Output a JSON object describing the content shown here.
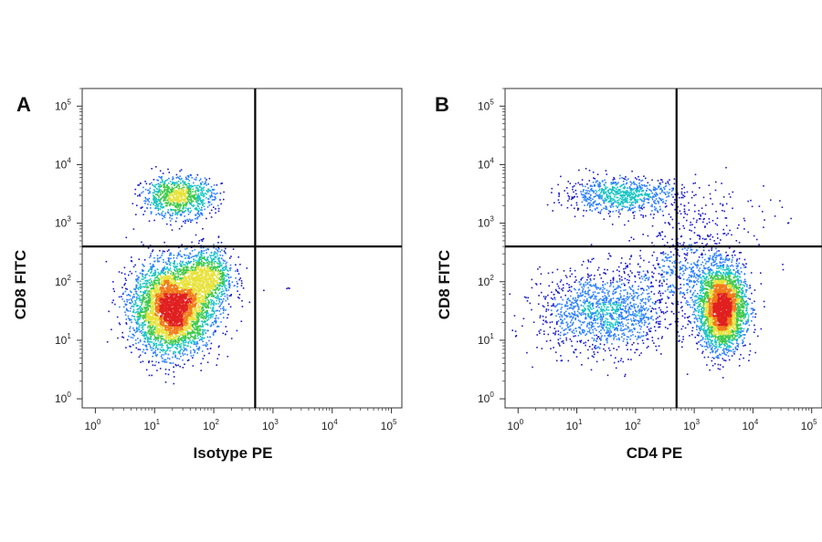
{
  "chart_data": [
    {
      "type": "scatter",
      "panel_label": "A",
      "xlabel": "Isotype PE",
      "ylabel": "CD8 FITC",
      "x_scale": "log",
      "y_scale": "log",
      "xlim": [
        0.6,
        150000
      ],
      "ylim": [
        0.7,
        200000
      ],
      "x_ticks": [
        {
          "base": "10",
          "exp": "0",
          "value": 1
        },
        {
          "base": "10",
          "exp": "1",
          "value": 10
        },
        {
          "base": "10",
          "exp": "2",
          "value": 100
        },
        {
          "base": "10",
          "exp": "3",
          "value": 1000
        },
        {
          "base": "10",
          "exp": "4",
          "value": 10000
        },
        {
          "base": "10",
          "exp": "5",
          "value": 100000
        }
      ],
      "y_ticks": [
        {
          "base": "10",
          "exp": "0",
          "value": 1
        },
        {
          "base": "10",
          "exp": "1",
          "value": 10
        },
        {
          "base": "10",
          "exp": "2",
          "value": 100
        },
        {
          "base": "10",
          "exp": "3",
          "value": 1000
        },
        {
          "base": "10",
          "exp": "4",
          "value": 10000
        },
        {
          "base": "10",
          "exp": "5",
          "value": 100000
        }
      ],
      "quadrant_gate": {
        "x": 500,
        "y": 400
      },
      "colormap": [
        "#1a1acc",
        "#2a7fff",
        "#19c4c4",
        "#3fc94a",
        "#e8e23a",
        "#f07a1a",
        "#e02020"
      ],
      "populations": [
        {
          "center_x": 20,
          "center_y": 35,
          "sd_log_x": 0.33,
          "sd_log_y": 0.38,
          "count": 4200
        },
        {
          "center_x": 80,
          "center_y": 120,
          "sd_log_x": 0.22,
          "sd_log_y": 0.25,
          "count": 900
        },
        {
          "center_x": 25,
          "center_y": 2800,
          "sd_log_x": 0.3,
          "sd_log_y": 0.17,
          "count": 950
        },
        {
          "center_x": 1800,
          "center_y": 80,
          "sd_log_x": 0.02,
          "sd_log_y": 0.02,
          "count": 3
        }
      ]
    },
    {
      "type": "scatter",
      "panel_label": "B",
      "xlabel": "CD4 PE",
      "ylabel": "CD8 FITC",
      "x_scale": "log",
      "y_scale": "log",
      "xlim": [
        0.6,
        150000
      ],
      "ylim": [
        0.7,
        200000
      ],
      "x_ticks": [
        {
          "base": "10",
          "exp": "0",
          "value": 1
        },
        {
          "base": "10",
          "exp": "1",
          "value": 10
        },
        {
          "base": "10",
          "exp": "2",
          "value": 100
        },
        {
          "base": "10",
          "exp": "3",
          "value": 1000
        },
        {
          "base": "10",
          "exp": "4",
          "value": 10000
        },
        {
          "base": "10",
          "exp": "5",
          "value": 100000
        }
      ],
      "y_ticks": [
        {
          "base": "10",
          "exp": "0",
          "value": 1
        },
        {
          "base": "10",
          "exp": "1",
          "value": 10
        },
        {
          "base": "10",
          "exp": "2",
          "value": 100
        },
        {
          "base": "10",
          "exp": "3",
          "value": 1000
        },
        {
          "base": "10",
          "exp": "4",
          "value": 10000
        },
        {
          "base": "10",
          "exp": "5",
          "value": 100000
        }
      ],
      "quadrant_gate": {
        "x": 500,
        "y": 400
      },
      "colormap": [
        "#1a1acc",
        "#2a7fff",
        "#19c4c4",
        "#3fc94a",
        "#e8e23a",
        "#f07a1a",
        "#e02020"
      ],
      "populations": [
        {
          "center_x": 3000,
          "center_y": 35,
          "sd_log_x": 0.2,
          "sd_log_y": 0.35,
          "count": 3200
        },
        {
          "center_x": 30,
          "center_y": 30,
          "sd_log_x": 0.55,
          "sd_log_y": 0.35,
          "count": 1400
        },
        {
          "center_x": 60,
          "center_y": 3000,
          "sd_log_x": 0.5,
          "sd_log_y": 0.15,
          "count": 800
        },
        {
          "center_x": 800,
          "center_y": 150,
          "sd_log_x": 0.45,
          "sd_log_y": 0.35,
          "count": 500
        },
        {
          "center_x": 2000,
          "center_y": 1500,
          "sd_log_x": 0.6,
          "sd_log_y": 0.3,
          "count": 120
        }
      ]
    }
  ]
}
